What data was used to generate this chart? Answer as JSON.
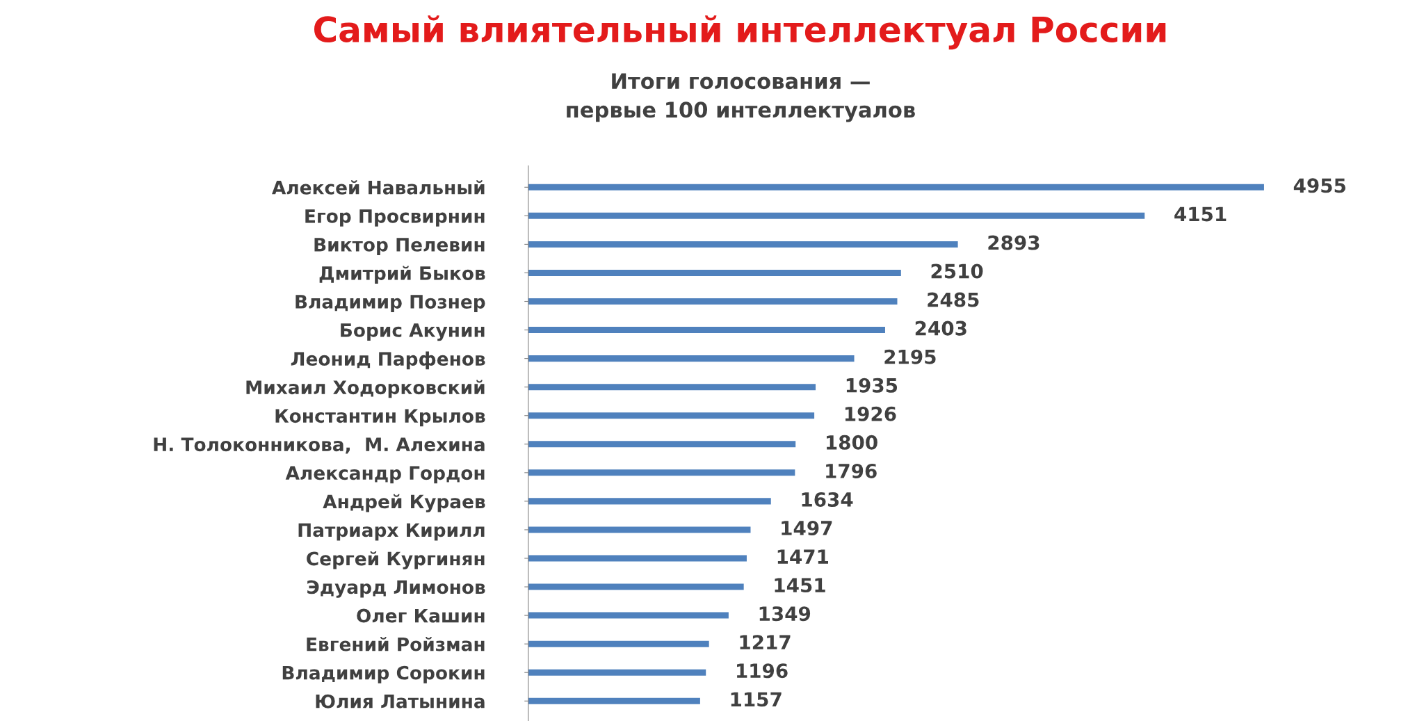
{
  "chart_data": {
    "type": "bar",
    "orientation": "horizontal",
    "title": "Самый влиятельный интеллектуал России",
    "subtitle": "Итоги голосования —\nпервые 100 интеллектуалов",
    "categories": [
      "Алексей Навальный",
      "Егор Просвирнин",
      "Виктор Пелевин",
      "Дмитрий Быков",
      "Владимир Познер",
      "Борис Акунин",
      "Леонид Парфенов",
      "Михаил Ходорковский",
      "Константин Крылов",
      "Н. Толоконникова,  М. Алехина",
      "Александр Гордон",
      "Андрей Кураев",
      "Патриарх Кирилл",
      "Сергей Кургинян",
      "Эдуард Лимонов",
      "Олег Кашин",
      "Евгений Ройзман",
      "Владимир Сорокин",
      "Юлия Латынина"
    ],
    "values": [
      4955,
      4151,
      2893,
      2510,
      2485,
      2403,
      2195,
      1935,
      1926,
      1800,
      1796,
      1634,
      1497,
      1471,
      1451,
      1349,
      1217,
      1196,
      1157
    ],
    "color": "#4f81bd",
    "data_labels": true,
    "grid": false,
    "legend": false
  }
}
